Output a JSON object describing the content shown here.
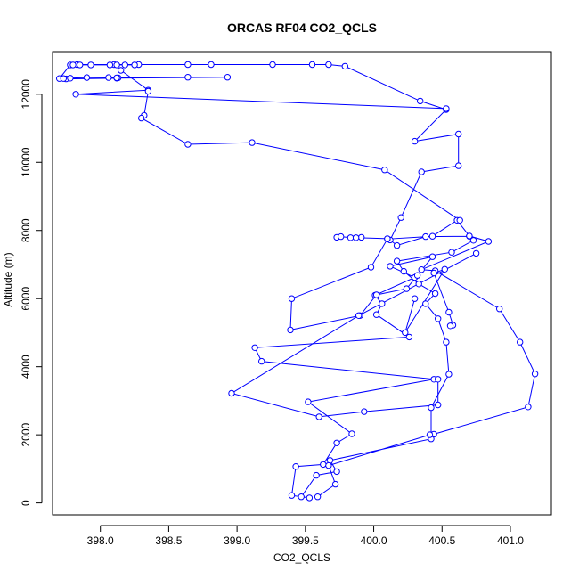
{
  "chart_data": {
    "type": "line",
    "title": "ORCAS RF04 CO2_QCLS",
    "xlabel": "CO2_QCLS",
    "ylabel": "Altitude (m)",
    "xlim": [
      397.65,
      401.3
    ],
    "ylim": [
      -350,
      13250
    ],
    "xticks": [
      398.0,
      398.5,
      399.0,
      399.5,
      400.0,
      400.5,
      401.0
    ],
    "xtick_labels": [
      "398.0",
      "398.5",
      "399.0",
      "399.5",
      "400.0",
      "400.5",
      "401.0"
    ],
    "yticks": [
      0,
      2000,
      4000,
      6000,
      8000,
      10000,
      12000
    ],
    "ytick_labels": [
      "0",
      "2000",
      "4000",
      "6000",
      "8000",
      "10000",
      "12000"
    ],
    "grid": false,
    "marker": "open-circle",
    "line_color": "#0000ff",
    "series": [
      {
        "points": [
          [
            398.93,
            12500
          ],
          [
            398.12,
            12470
          ],
          [
            397.75,
            12450
          ],
          [
            397.7,
            12460
          ],
          [
            397.78,
            12860
          ],
          [
            397.83,
            12870
          ],
          [
            398.1,
            12870
          ],
          [
            398.28,
            12870
          ],
          [
            398.64,
            12870
          ],
          [
            398.81,
            12870
          ],
          [
            399.26,
            12870
          ],
          [
            399.55,
            12870
          ],
          [
            399.67,
            12870
          ],
          [
            399.79,
            12820
          ],
          [
            400.34,
            11800
          ],
          [
            400.53,
            11550
          ],
          [
            400.3,
            10620
          ],
          [
            400.62,
            10830
          ],
          [
            400.62,
            9900
          ],
          [
            400.35,
            9720
          ],
          [
            400.2,
            8380
          ],
          [
            400.12,
            7720
          ],
          [
            400.17,
            7560
          ],
          [
            400.38,
            7820
          ],
          [
            400.7,
            7830
          ],
          [
            400.73,
            7710
          ],
          [
            400.57,
            7360
          ],
          [
            400.17,
            7100
          ],
          [
            400.22,
            6800
          ],
          [
            400.33,
            6430
          ],
          [
            400.45,
            6150
          ],
          [
            400.38,
            5850
          ],
          [
            400.47,
            5410
          ],
          [
            400.53,
            4720
          ],
          [
            400.55,
            3780
          ],
          [
            400.42,
            2800
          ],
          [
            400.42,
            1880
          ],
          [
            399.68,
            1250
          ],
          [
            399.73,
            920
          ],
          [
            399.58,
            810
          ],
          [
            399.47,
            180
          ],
          [
            399.53,
            150
          ],
          [
            399.4,
            220
          ],
          [
            399.43,
            1070
          ],
          [
            399.63,
            1130
          ],
          [
            399.73,
            1760
          ],
          [
            399.84,
            2030
          ],
          [
            399.52,
            2970
          ],
          [
            400.44,
            3630
          ],
          [
            399.18,
            4160
          ],
          [
            399.13,
            4560
          ],
          [
            400.26,
            4870
          ],
          [
            400.02,
            5530
          ],
          [
            400.06,
            5850
          ],
          [
            400.01,
            6100
          ],
          [
            400.3,
            6620
          ],
          [
            400.12,
            6950
          ],
          [
            400.43,
            7230
          ],
          [
            400.32,
            6680
          ],
          [
            400.24,
            6290
          ],
          [
            400.02,
            6110
          ],
          [
            399.9,
            5500
          ],
          [
            399.39,
            5080
          ],
          [
            399.4,
            6000
          ],
          [
            399.98,
            6920
          ],
          [
            400.1,
            7750
          ],
          [
            400.43,
            7830
          ],
          [
            400.61,
            8300
          ],
          [
            400.7,
            7840
          ],
          [
            400.84,
            7680
          ],
          [
            400.35,
            6850
          ],
          [
            400.45,
            6820
          ],
          [
            400.92,
            5700
          ],
          [
            401.07,
            4720
          ],
          [
            401.18,
            3790
          ],
          [
            401.13,
            2820
          ],
          [
            400.44,
            2020
          ],
          [
            400.41,
            2000
          ],
          [
            399.67,
            1100
          ],
          [
            399.72,
            550
          ],
          [
            399.59,
            180
          ]
        ]
      },
      {
        "points": [
          [
            397.73,
            12460
          ],
          [
            397.78,
            12470
          ],
          [
            397.9,
            12490
          ],
          [
            398.06,
            12490
          ],
          [
            398.13,
            12480
          ],
          [
            398.12,
            12480
          ],
          [
            398.64,
            12500
          ]
        ]
      },
      {
        "points": [
          [
            398.15,
            12700
          ],
          [
            398.35,
            12120
          ],
          [
            397.82,
            12000
          ],
          [
            400.53,
            11580
          ]
        ]
      },
      {
        "points": [
          [
            398.25,
            12860
          ],
          [
            398.18,
            12860
          ],
          [
            398.12,
            12860
          ],
          [
            398.07,
            12860
          ],
          [
            397.93,
            12860
          ],
          [
            397.85,
            12860
          ],
          [
            397.8,
            12860
          ]
        ]
      },
      {
        "points": [
          [
            398.35,
            12090
          ],
          [
            398.32,
            11380
          ],
          [
            398.3,
            11300
          ],
          [
            398.64,
            10530
          ],
          [
            399.11,
            10580
          ],
          [
            400.08,
            9780
          ],
          [
            400.63,
            8300
          ]
        ]
      },
      {
        "points": [
          [
            399.73,
            7800
          ],
          [
            399.76,
            7820
          ],
          [
            399.83,
            7790
          ],
          [
            399.91,
            7800
          ],
          [
            399.87,
            7790
          ],
          [
            400.1,
            7760
          ]
        ]
      },
      {
        "points": [
          [
            400.47,
            3630
          ],
          [
            400.47,
            2880
          ],
          [
            399.93,
            2680
          ],
          [
            399.6,
            2530
          ],
          [
            398.96,
            3220
          ],
          [
            399.89,
            5500
          ],
          [
            400.75,
            7330
          ]
        ]
      },
      {
        "points": [
          [
            400.3,
            6000
          ],
          [
            400.23,
            5000
          ],
          [
            400.52,
            6860
          ],
          [
            400.44,
            6750
          ],
          [
            400.55,
            5600
          ],
          [
            400.58,
            5220
          ],
          [
            400.56,
            5200
          ]
        ]
      }
    ]
  }
}
